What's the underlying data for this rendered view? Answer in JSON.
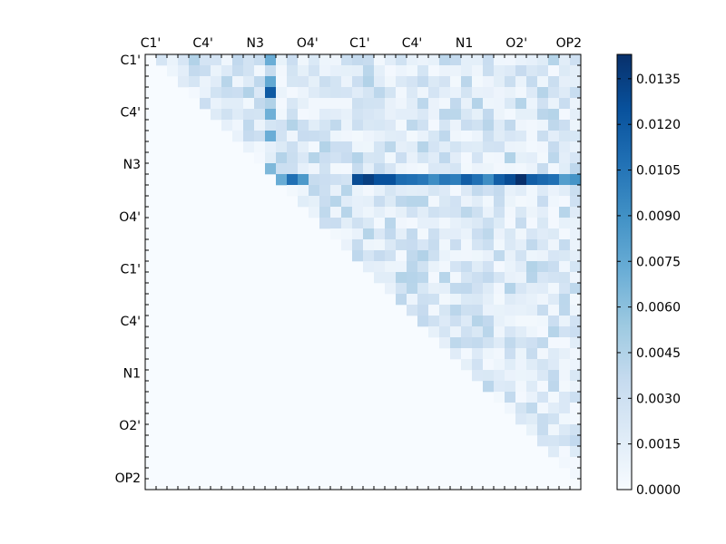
{
  "chart_data": {
    "type": "heatmap",
    "colormap": "Blues",
    "n": 40,
    "x_tick_labels": [
      "C1'",
      "C4'",
      "N3",
      "O4'",
      "C1'",
      "C4'",
      "N1",
      "O2'",
      "OP2"
    ],
    "x_tick_indices": [
      0,
      4.8,
      9.6,
      14.4,
      19.2,
      24,
      28.8,
      33.6,
      38.4
    ],
    "y_tick_labels": [
      "C1'",
      "C4'",
      "N3",
      "O4'",
      "C1'",
      "C4'",
      "N1",
      "O2'",
      "OP2"
    ],
    "y_tick_indices": [
      0,
      4.8,
      9.6,
      14.4,
      19.2,
      24,
      28.8,
      33.6,
      38.4
    ],
    "colorbar": {
      "min": 0.0,
      "max": 0.0143,
      "ticks": [
        0.0,
        0.0015,
        0.003,
        0.0045,
        0.006,
        0.0075,
        0.009,
        0.0105,
        0.012,
        0.0135
      ],
      "tick_labels": [
        "0.0000",
        "0.0015",
        "0.0030",
        "0.0045",
        "0.0060",
        "0.0075",
        "0.0090",
        "0.0105",
        "0.0120",
        "0.0135"
      ]
    },
    "strong_row": {
      "row": 11,
      "values": [
        0,
        0,
        0,
        0,
        0,
        0,
        0,
        0,
        0,
        0,
        0,
        0,
        0.0073,
        0.0108,
        0.0085,
        0.0035,
        0.0032,
        0.003,
        0.0027,
        0.0128,
        0.0135,
        0.0125,
        0.0125,
        0.011,
        0.0108,
        0.0104,
        0.0092,
        0.0104,
        0.01,
        0.0118,
        0.0108,
        0.0092,
        0.0118,
        0.0128,
        0.0143,
        0.0118,
        0.0112,
        0.0108,
        0.0082,
        0.0088
      ]
    },
    "strong_column": {
      "col": 11,
      "values": [
        0.0072,
        0.0035,
        0.0075,
        0.012,
        0.0045,
        0.007,
        0.0025,
        0.0072,
        0.0012,
        0.0015,
        0.0065,
        0.0042
      ]
    },
    "upper_triangle_background": {
      "range": [
        0.0003,
        0.0045
      ],
      "typical": 0.0022
    }
  }
}
